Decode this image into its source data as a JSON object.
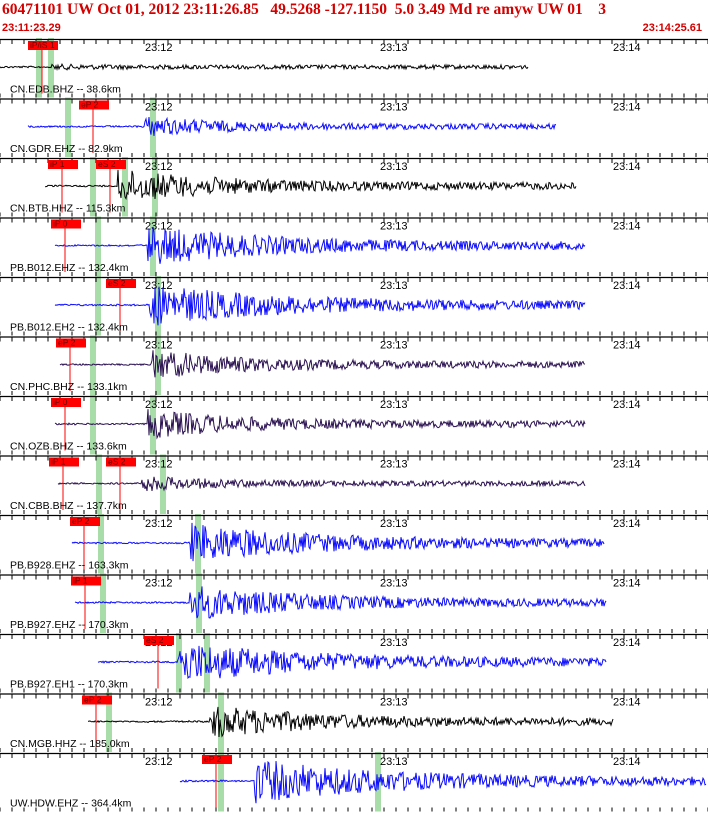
{
  "header": {
    "title": "60471101 UW Oct 01, 2012 23:11:26.85   49.5268 -127.1150  5.0 3.49 Md re amyw UW 01    3",
    "start_time": "23:11:23.29",
    "end_time": "23:14:25.61"
  },
  "colors": {
    "header_text": "#d40000",
    "trace_blue": "#0a0aff",
    "trace_black": "#000000",
    "trace_navy": "#2a1050",
    "pick_red": "#ff0000",
    "window_green": "#a8dca8"
  },
  "chart_data": {
    "type": "line",
    "time_ticks": [
      "23:12",
      "23:13",
      "23:14"
    ],
    "traces": [
      {
        "label": "CN.EDB.BHZ -- 38.6km",
        "color": "black",
        "picks": [
          "iP/iS 1"
        ],
        "amp": 0.05
      },
      {
        "label": "CN.GDR.EHZ -- 82.9km",
        "color": "blue",
        "picks": [
          "eP 2"
        ],
        "amp": 0.4
      },
      {
        "label": "CN.BTB.HHZ -- 115.3km",
        "color": "black",
        "picks": [
          "iP 1",
          "eS 2"
        ],
        "amp": 0.7
      },
      {
        "label": "PB.B012.EHZ -- 132.4km",
        "color": "blue",
        "picks": [
          "iP 0"
        ],
        "amp": 0.85
      },
      {
        "label": "PB.B012.EH2 -- 132.4km",
        "color": "blue",
        "picks": [
          "eS 2"
        ],
        "amp": 0.9
      },
      {
        "label": "CN.PHC.BHZ -- 133.1km",
        "color": "navy",
        "picks": [
          "eP 2"
        ],
        "amp": 0.6
      },
      {
        "label": "CN.OZB.BHZ -- 133.6km",
        "color": "navy",
        "picks": [
          "iP 0"
        ],
        "amp": 0.6
      },
      {
        "label": "CN.CBB.BHZ -- 137.7km",
        "color": "navy",
        "picks": [
          "iP 1",
          "eS 2"
        ],
        "amp": 0.3
      },
      {
        "label": "PB.B928.EHZ -- 163.3km",
        "color": "blue",
        "picks": [
          "eP 2"
        ],
        "amp": 0.85
      },
      {
        "label": "PB.B927.EHZ -- 170.3km",
        "color": "blue",
        "picks": [
          "iP 1"
        ],
        "amp": 0.75
      },
      {
        "label": "PB.B927.EH1 -- 170.3km",
        "color": "blue",
        "picks": [
          "eS 2"
        ],
        "amp": 0.9
      },
      {
        "label": "CN.MGB.HHZ -- 185.0km",
        "color": "black",
        "picks": [
          "eP 2"
        ],
        "amp": 0.7
      },
      {
        "label": "UW.HDW.EHZ -- 364.4km",
        "color": "blue",
        "picks": [
          "eP 2"
        ],
        "amp": 0.95
      }
    ]
  }
}
